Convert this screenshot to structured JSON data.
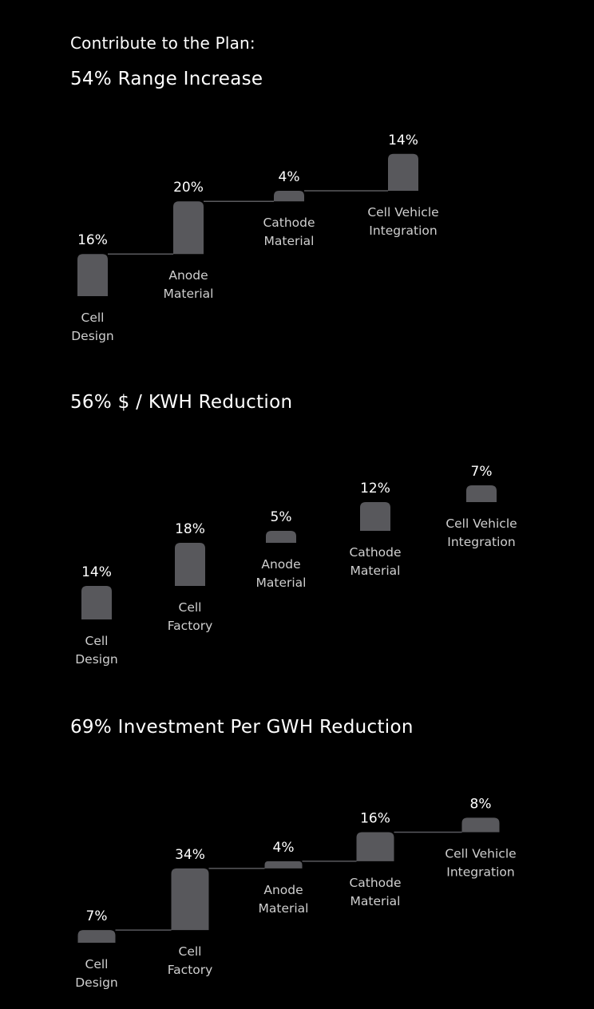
{
  "heading": "Contribute to the Plan:",
  "colors": {
    "background": "#000000",
    "bar": "#58585c",
    "text": "#ffffff",
    "label": "#cfcfcf"
  },
  "chart_data": [
    {
      "type": "bar",
      "title": "54% Range Increase",
      "categories": [
        [
          "Cell",
          "Design"
        ],
        [
          "Anode",
          "Material"
        ],
        [
          "Cathode",
          "Material"
        ],
        [
          "Cell Vehicle",
          "Integration"
        ]
      ],
      "values": [
        16,
        20,
        4,
        14
      ],
      "value_labels": [
        "16%",
        "20%",
        "4%",
        "14%"
      ],
      "style": "waterfall"
    },
    {
      "type": "bar",
      "title": "56% $ / KWH Reduction",
      "categories": [
        [
          "Cell",
          "Design"
        ],
        [
          "Cell",
          "Factory"
        ],
        [
          "Anode",
          "Material"
        ],
        [
          "Cathode",
          "Material"
        ],
        [
          "Cell Vehicle",
          "Integration"
        ]
      ],
      "values": [
        14,
        18,
        5,
        12,
        7
      ],
      "value_labels": [
        "14%",
        "18%",
        "5%",
        "12%",
        "7%"
      ],
      "style": "waterfall"
    },
    {
      "type": "bar",
      "title": "69% Investment Per GWH Reduction",
      "categories": [
        [
          "Cell",
          "Design"
        ],
        [
          "Cell",
          "Factory"
        ],
        [
          "Anode",
          "Material"
        ],
        [
          "Cathode",
          "Material"
        ],
        [
          "Cell Vehicle",
          "Integration"
        ]
      ],
      "values": [
        7,
        34,
        4,
        16,
        8
      ],
      "value_labels": [
        "7%",
        "34%",
        "4%",
        "16%",
        "8%"
      ],
      "style": "waterfall"
    }
  ]
}
